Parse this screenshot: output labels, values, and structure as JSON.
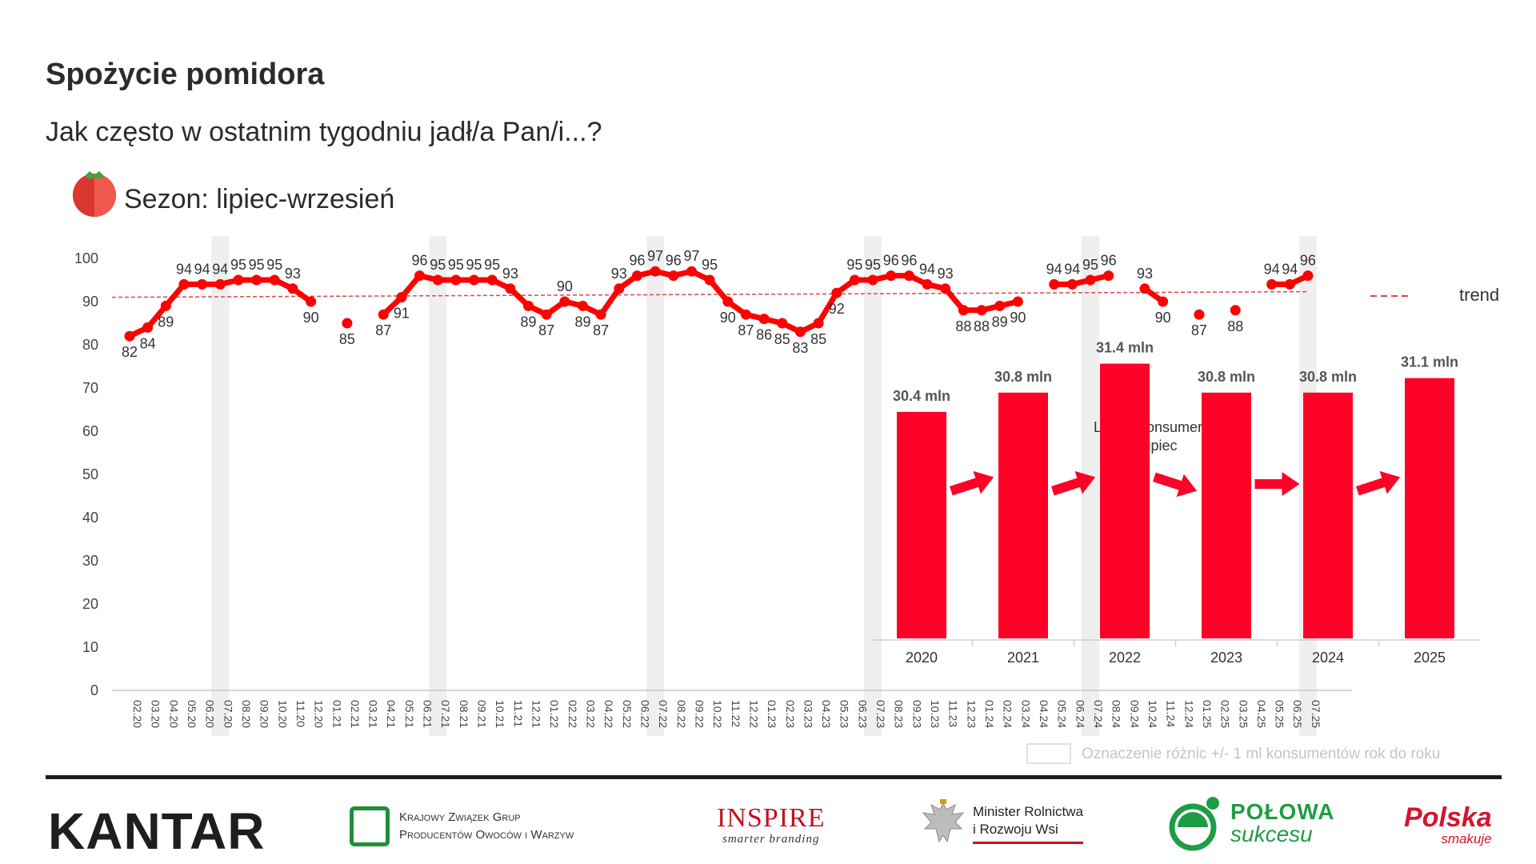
{
  "header": {
    "title": "Spożycie pomidora",
    "subtitle": "Jak często w ostatnim tygodniu jadł/a Pan/i...?",
    "season": "Sezon: lipiec-wrzesień"
  },
  "chart_data": [
    {
      "type": "line",
      "x": [
        "02.20",
        "03.20",
        "04.20",
        "05.20",
        "06.20",
        "07.20",
        "08.20",
        "09.20",
        "10.20",
        "11.20",
        "12.20",
        "01.21",
        "02.21",
        "03.21",
        "04.21",
        "05.21",
        "06.21",
        "07.21",
        "08.21",
        "09.21",
        "10.21",
        "11.21",
        "12.21",
        "01.22",
        "02.22",
        "03.22",
        "04.22",
        "05.22",
        "06.22",
        "07.22",
        "08.22",
        "09.22",
        "10.22",
        "11.22",
        "12.22",
        "01.23",
        "02.23",
        "03.23",
        "04.23",
        "05.23",
        "06.23",
        "07.23",
        "08.23",
        "09.23",
        "10.23",
        "11.23",
        "12.23",
        "01.24",
        "02.24",
        "03.24",
        "04.24",
        "05.24",
        "06.24",
        "07.24",
        "08.24",
        "09.24",
        "10.24",
        "11.24",
        "12.24",
        "01.25",
        "02.25",
        "03.25",
        "04.25",
        "05.25",
        "06.25",
        "07.25"
      ],
      "series": [
        {
          "values": [
            82,
            84,
            89,
            94,
            94,
            94,
            95,
            95,
            95,
            93,
            90,
            null,
            85,
            null,
            87,
            91,
            96,
            95,
            95,
            95,
            95,
            93,
            89,
            87,
            90,
            89,
            87,
            93,
            96,
            97,
            96,
            97,
            95,
            90,
            87,
            86,
            85,
            83,
            85,
            92,
            95,
            95,
            96,
            96,
            94,
            93,
            88,
            88,
            89,
            90,
            null,
            94,
            94,
            95,
            96,
            null,
            93,
            90,
            null,
            87,
            null,
            88,
            null,
            94,
            94,
            96
          ],
          "color": "#ff0000"
        }
      ],
      "trend": {
        "label": "trend",
        "start": 91,
        "end": 92.3,
        "color": "#e04848"
      },
      "highlighted_months": [
        "07.20",
        "07.21",
        "07.22",
        "07.23",
        "07.24",
        "07.25"
      ],
      "yticks": [
        0,
        10,
        20,
        30,
        40,
        50,
        60,
        70,
        80,
        90,
        100
      ],
      "ylim": [
        0,
        100
      ],
      "grid": false,
      "legend_position": "right"
    },
    {
      "type": "bar",
      "title": "Liczba konsumentów\nlipiec",
      "categories": [
        "2020",
        "2021",
        "2022",
        "2023",
        "2024",
        "2025"
      ],
      "values": [
        30.4,
        30.8,
        31.4,
        30.8,
        30.8,
        31.1
      ],
      "labels": [
        "30.4 mln",
        "30.8 mln",
        "31.4 mln",
        "30.8 mln",
        "30.8 mln",
        "31.1 mln"
      ],
      "color": "#ff0026",
      "change_arrows": [
        "up",
        "up",
        "down",
        "same",
        "up"
      ]
    }
  ],
  "legend_note": "Oznaczenie różnic +/- 1 ml konsumentów rok do roku",
  "footer": {
    "kantar": "KANTAR",
    "kzgp_line1": "Krajowy Związek Grup",
    "kzgp_line2": "Producentów Owoców i Warzyw",
    "inspire": "INSPIRE",
    "inspire_sub": "smarter branding",
    "minister_line1": "Minister Rolnictwa",
    "minister_line2": "i Rozwoju Wsi",
    "polowa_line1": "POŁOWA",
    "polowa_line2": "sukcesu",
    "polska_line1": "Polska",
    "polska_line2": "smakuje"
  }
}
